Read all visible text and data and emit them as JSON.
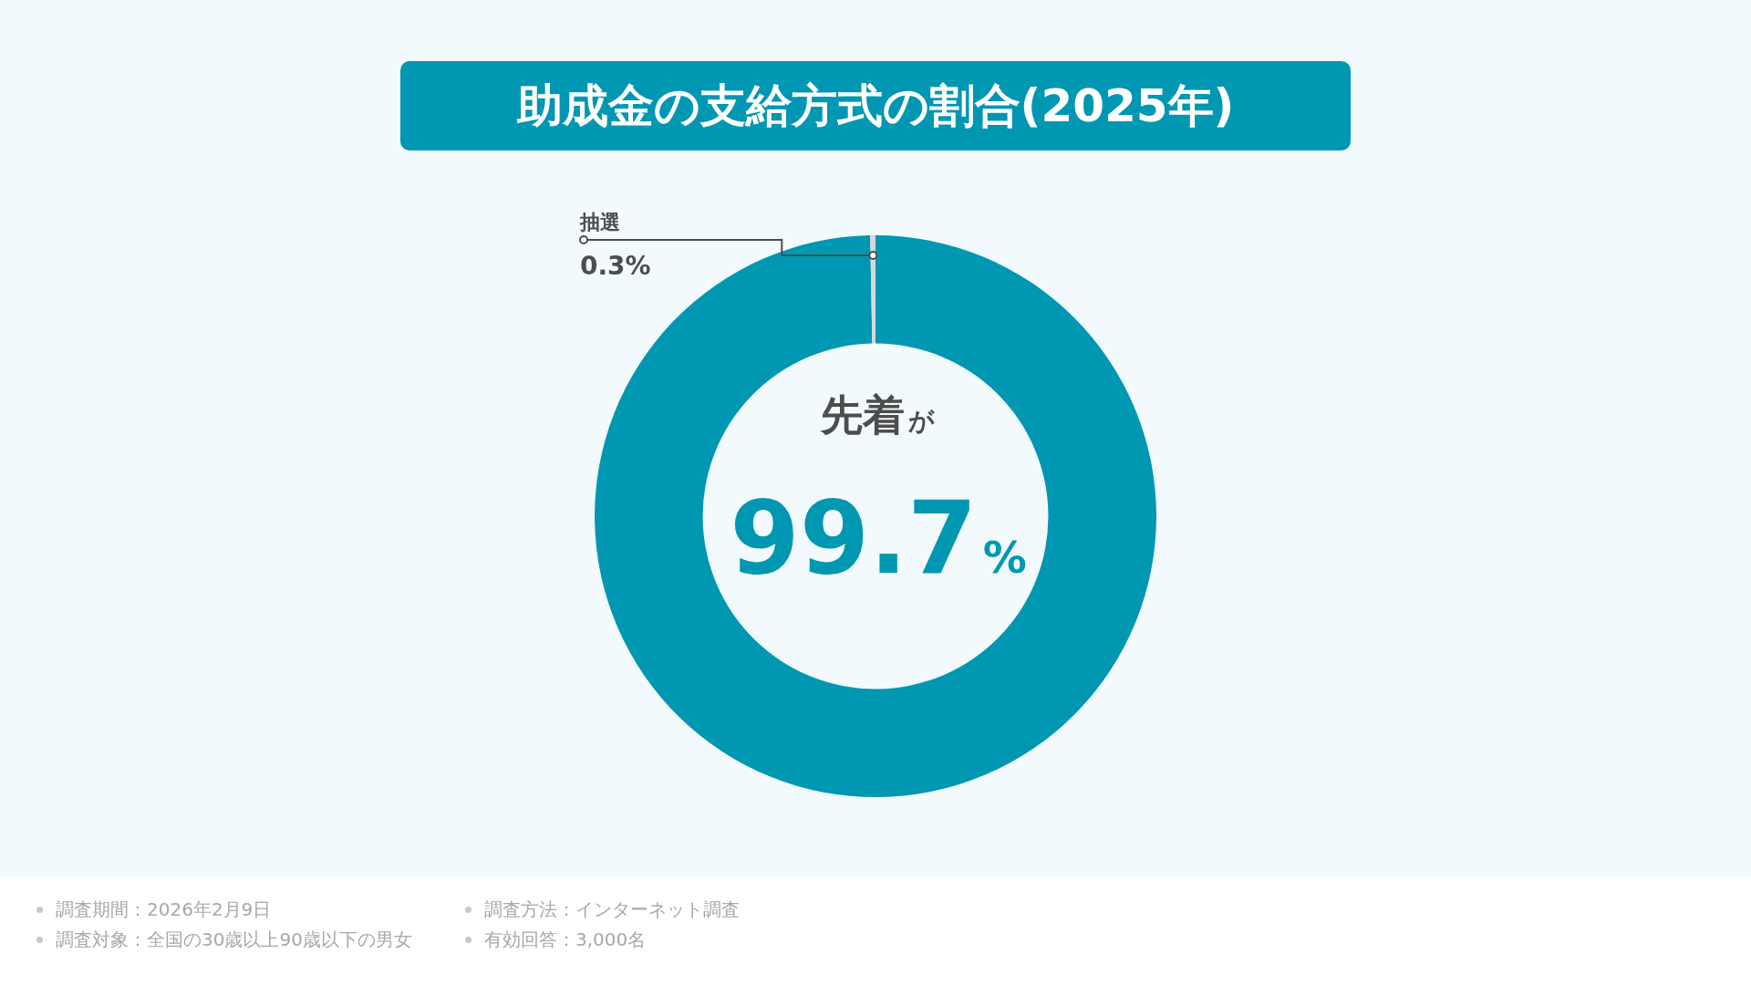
{
  "chart_data": {
    "type": "donut",
    "title": "助成金の支給方式の割合(2025年)",
    "categories": [
      "先着",
      "抽選"
    ],
    "values": [
      99.7,
      0.3
    ],
    "colors": [
      "#0097b2",
      "#d9d9d9"
    ],
    "value_labels": [
      "99.7%",
      "0.3%"
    ],
    "legend": false,
    "annotations": [
      "が",
      "調査期間：2026年2月9日",
      "調査対象：全国の30歳以上90歳以下の男女",
      "調査方法：インターネット調査",
      "有効回答：3,000名"
    ]
  }
}
